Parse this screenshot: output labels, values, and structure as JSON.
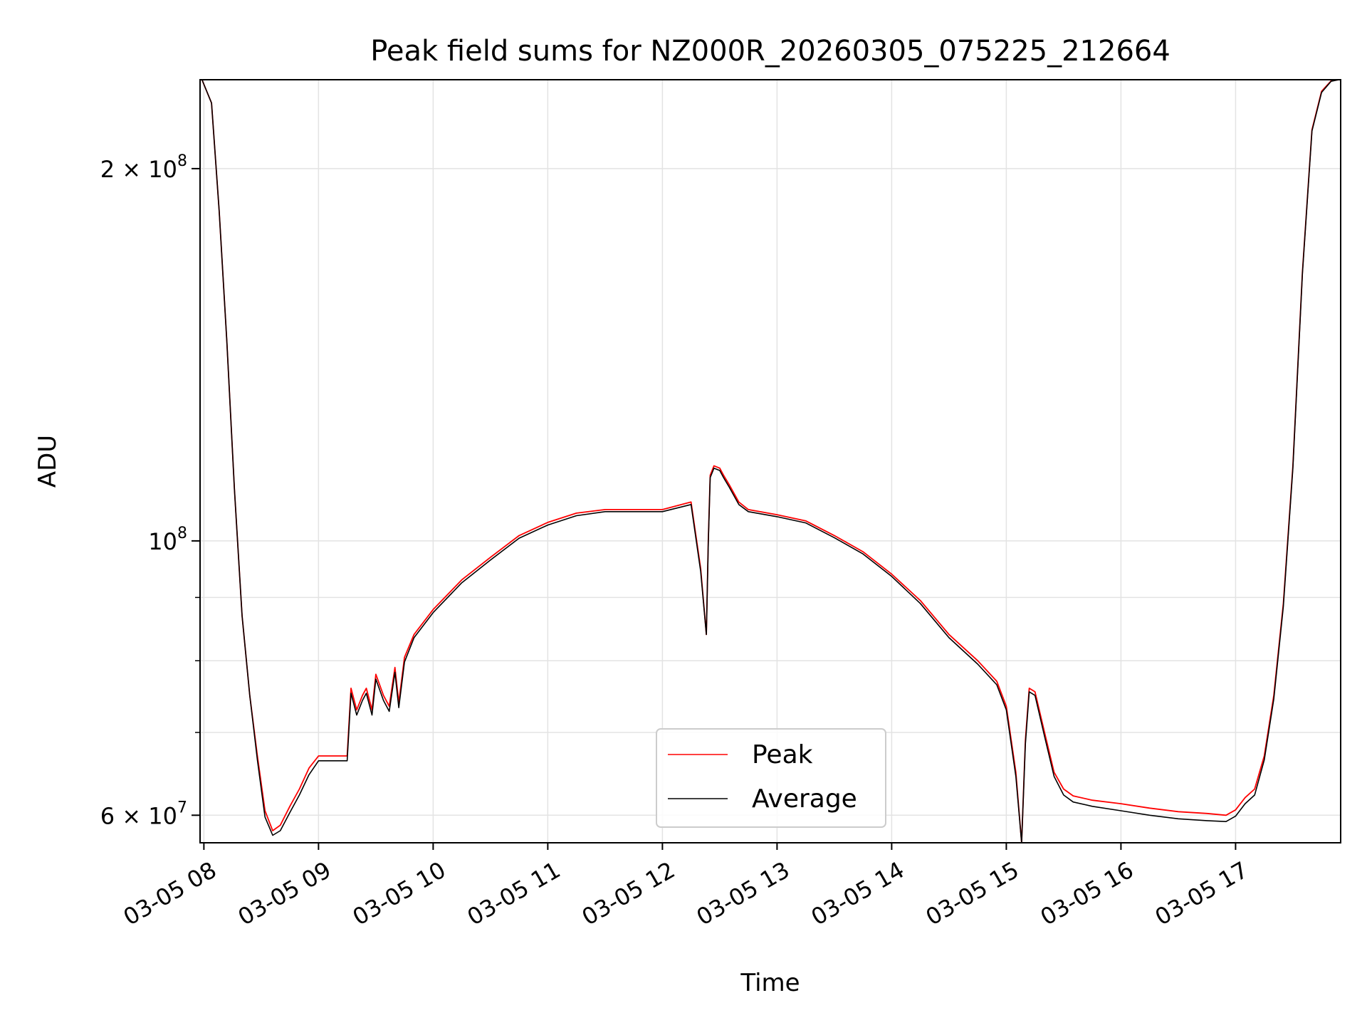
{
  "chart_data": {
    "type": "line",
    "title": "Peak field sums for NZ000R_20260305_075225_212664",
    "xlabel": "Time",
    "ylabel": "ADU",
    "y_scale": "log",
    "grid": true,
    "legend_position": "lower-center",
    "x_ticks": [
      "03-05 08",
      "03-05 09",
      "03-05 10",
      "03-05 11",
      "03-05 12",
      "03-05 13",
      "03-05 14",
      "03-05 15",
      "03-05 16",
      "03-05 17"
    ],
    "y_ticks": [
      {
        "value": 200000000,
        "mantissa": "2",
        "exponent": "8"
      },
      {
        "value": 100000000,
        "mantissa": "",
        "exponent": "8"
      },
      {
        "value": 60000000,
        "mantissa": "6",
        "exponent": "7"
      }
    ],
    "xlim": [
      "03-05 07:58",
      "03-05 17:55"
    ],
    "ylim": [
      57000000,
      236000000
    ],
    "series": [
      {
        "name": "Peak",
        "color": "#ff0000",
        "x": [
          "07:59",
          "08:04",
          "08:08",
          "08:12",
          "08:16",
          "08:20",
          "08:24",
          "08:28",
          "08:32",
          "08:36",
          "08:40",
          "08:45",
          "08:50",
          "08:55",
          "09:00",
          "09:05",
          "09:10",
          "09:15",
          "09:17",
          "09:20",
          "09:23",
          "09:25",
          "09:28",
          "09:30",
          "09:34",
          "09:37",
          "09:40",
          "09:42",
          "09:45",
          "09:50",
          "10:00",
          "10:15",
          "10:30",
          "10:45",
          "11:00",
          "11:15",
          "11:30",
          "11:45",
          "12:00",
          "12:15",
          "12:20",
          "12:23",
          "12:24",
          "12:25",
          "12:27",
          "12:30",
          "12:32",
          "12:35",
          "12:40",
          "12:45",
          "13:00",
          "13:15",
          "13:30",
          "13:45",
          "14:00",
          "14:15",
          "14:30",
          "14:45",
          "14:55",
          "15:00",
          "15:05",
          "15:08",
          "15:10",
          "15:12",
          "15:15",
          "15:20",
          "15:25",
          "15:30",
          "15:35",
          "15:45",
          "16:00",
          "16:15",
          "16:30",
          "16:45",
          "16:55",
          "17:00",
          "17:05",
          "17:10",
          "17:15",
          "17:20",
          "17:25",
          "17:30",
          "17:35",
          "17:40",
          "17:45",
          "17:50",
          "17:54"
        ],
        "y": [
          236000000,
          226000000,
          185000000,
          145000000,
          110000000,
          87000000,
          75000000,
          67000000,
          60500000,
          58300000,
          58900000,
          61000000,
          63000000,
          65500000,
          67000000,
          67000000,
          67000000,
          67000000,
          76000000,
          73000000,
          75000000,
          76000000,
          73000000,
          78000000,
          75000000,
          73500000,
          79000000,
          74000000,
          80500000,
          84000000,
          88000000,
          93000000,
          97000000,
          101000000,
          103500000,
          105300000,
          106000000,
          106000000,
          106000000,
          107500000,
          95000000,
          84000000,
          100000000,
          113000000,
          115000000,
          114500000,
          113000000,
          111000000,
          107500000,
          106000000,
          105000000,
          103800000,
          101000000,
          98000000,
          94000000,
          89500000,
          84000000,
          80000000,
          77000000,
          73500000,
          65000000,
          57000000,
          69000000,
          76000000,
          75500000,
          70000000,
          65000000,
          63000000,
          62200000,
          61700000,
          61300000,
          60800000,
          60400000,
          60200000,
          60000000,
          60600000,
          62000000,
          63000000,
          67000000,
          75000000,
          89000000,
          115000000,
          165000000,
          215000000,
          231000000,
          235500000,
          236000000
        ]
      },
      {
        "name": "Average",
        "color": "#000000",
        "x": [
          "07:59",
          "08:04",
          "08:08",
          "08:12",
          "08:16",
          "08:20",
          "08:24",
          "08:28",
          "08:32",
          "08:36",
          "08:40",
          "08:45",
          "08:50",
          "08:55",
          "09:00",
          "09:05",
          "09:10",
          "09:15",
          "09:17",
          "09:20",
          "09:23",
          "09:25",
          "09:28",
          "09:30",
          "09:34",
          "09:37",
          "09:40",
          "09:42",
          "09:45",
          "09:50",
          "10:00",
          "10:15",
          "10:30",
          "10:45",
          "11:00",
          "11:15",
          "11:30",
          "11:45",
          "12:00",
          "12:15",
          "12:20",
          "12:23",
          "12:24",
          "12:25",
          "12:27",
          "12:30",
          "12:32",
          "12:35",
          "12:40",
          "12:45",
          "13:00",
          "13:15",
          "13:30",
          "13:45",
          "14:00",
          "14:15",
          "14:30",
          "14:45",
          "14:55",
          "15:00",
          "15:05",
          "15:08",
          "15:10",
          "15:12",
          "15:15",
          "15:20",
          "15:25",
          "15:30",
          "15:35",
          "15:45",
          "16:00",
          "16:15",
          "16:30",
          "16:45",
          "16:55",
          "17:00",
          "17:05",
          "17:10",
          "17:15",
          "17:20",
          "17:25",
          "17:30",
          "17:35",
          "17:40",
          "17:45",
          "17:50",
          "17:54"
        ],
        "y": [
          236000000,
          226000000,
          185000000,
          145000000,
          110000000,
          87000000,
          75000000,
          66500000,
          59800000,
          57800000,
          58300000,
          60300000,
          62300000,
          64700000,
          66400000,
          66400000,
          66400000,
          66400000,
          75300000,
          72300000,
          74300000,
          75300000,
          72300000,
          77300000,
          74300000,
          72800000,
          78300000,
          73300000,
          79800000,
          83500000,
          87500000,
          92500000,
          96500000,
          100500000,
          103000000,
          104800000,
          105600000,
          105600000,
          105600000,
          107000000,
          94500000,
          84000000,
          99500000,
          112500000,
          114500000,
          114000000,
          112500000,
          110500000,
          107000000,
          105600000,
          104600000,
          103400000,
          100600000,
          97600000,
          93600000,
          89000000,
          83500000,
          79500000,
          76500000,
          73000000,
          64500000,
          56800000,
          68500000,
          75500000,
          75000000,
          69500000,
          64500000,
          62300000,
          61500000,
          61000000,
          60500000,
          60000000,
          59600000,
          59400000,
          59300000,
          59900000,
          61300000,
          62300000,
          66500000,
          74500000,
          88500000,
          114500000,
          164500000,
          214500000,
          230500000,
          235300000,
          236000000
        ]
      }
    ]
  }
}
